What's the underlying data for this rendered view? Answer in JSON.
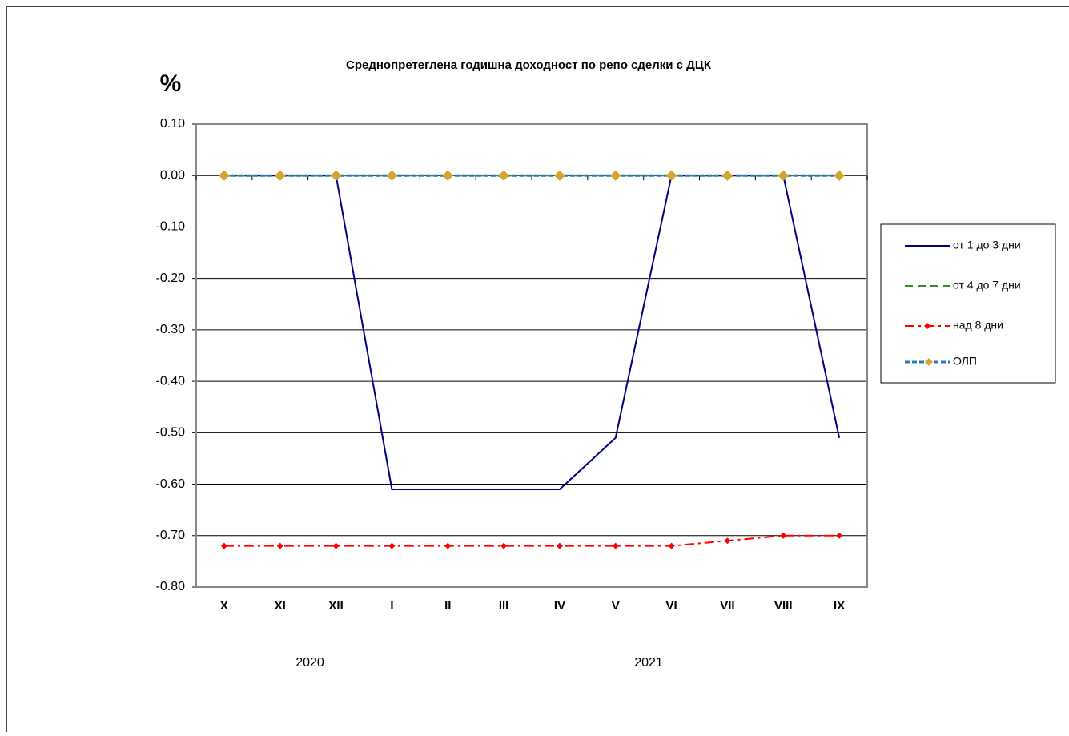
{
  "chart_data": {
    "type": "line",
    "title": "Среднопретеглена годишна доходност по репо сделки с ДЦК",
    "y_label": "%",
    "categories": [
      "X",
      "XI",
      "XII",
      "I",
      "II",
      "III",
      "IV",
      "V",
      "VI",
      "VII",
      "VIII",
      "IX"
    ],
    "annotations": [
      "2020",
      "2021"
    ],
    "series": [
      {
        "name": "от 1 до 3 дни",
        "color": "#000080",
        "dash": "solid",
        "marker": "none",
        "values": [
          0,
          0,
          0,
          -0.61,
          -0.61,
          -0.61,
          -0.61,
          -0.51,
          0,
          0,
          0,
          -0.51
        ]
      },
      {
        "name": "от 4 до 7 дни",
        "color": "#3a8a2a",
        "dash": "dashed",
        "marker": "none",
        "values": [
          0,
          0,
          0,
          0,
          0,
          0,
          0,
          0,
          0,
          0,
          0,
          0
        ]
      },
      {
        "name": "над 8 дни",
        "color": "#ff0000",
        "dash": "dashdot",
        "marker": "diamond-small",
        "values": [
          -0.72,
          -0.72,
          -0.72,
          -0.72,
          -0.72,
          -0.72,
          -0.72,
          -0.72,
          -0.72,
          -0.71,
          -0.7,
          -0.7
        ]
      },
      {
        "name": "ОЛП",
        "color": "#2e75b6",
        "dash": "dotted",
        "marker": "diamond",
        "marker_color": "#d4a72c",
        "values": [
          0,
          0,
          0,
          0,
          0,
          0,
          0,
          0,
          0,
          0,
          0,
          0
        ]
      }
    ],
    "ylim": [
      -0.8,
      0.1
    ],
    "yticks": [
      {
        "value": 0.1,
        "label": "0.10"
      },
      {
        "value": 0,
        "label": "0.00"
      },
      {
        "value": -0.1,
        "label": "-0.10"
      },
      {
        "value": -0.2,
        "label": "-0.20"
      },
      {
        "value": -0.3,
        "label": "-0.30"
      },
      {
        "value": -0.4,
        "label": "-0.40"
      },
      {
        "value": -0.5,
        "label": "-0.50"
      },
      {
        "value": -0.6,
        "label": "-0.60"
      },
      {
        "value": -0.7,
        "label": "-0.70"
      },
      {
        "value": -0.8,
        "label": "-0.80"
      }
    ],
    "grid": true,
    "legend": "right"
  }
}
